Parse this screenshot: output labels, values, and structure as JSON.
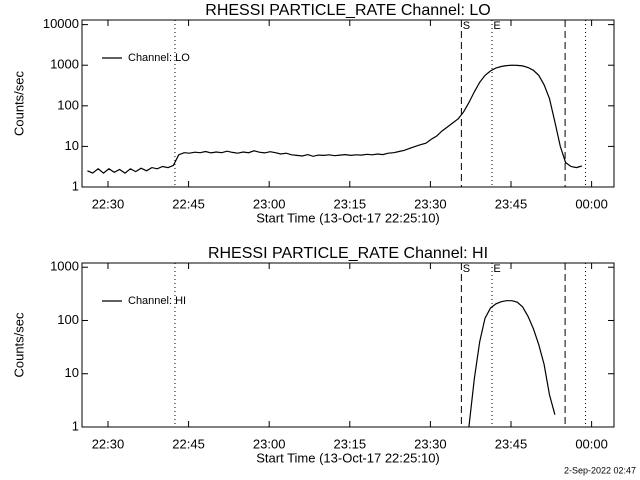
{
  "chart_data": [
    {
      "type": "line",
      "title": "RHESSI PARTICLE_RATE Channel: LO",
      "xlabel": "Start Time (13-Oct-17 22:25:10)",
      "ylabel": "Counts/sec",
      "x": [
        1,
        2,
        3,
        4,
        5,
        6,
        7,
        8,
        9,
        10,
        11,
        12,
        13,
        14,
        15,
        16,
        17,
        18,
        19,
        20,
        21,
        22,
        23,
        24,
        25,
        26,
        27,
        28,
        29,
        30,
        31,
        32,
        33,
        34,
        35,
        36,
        37,
        38,
        39,
        40,
        41,
        42,
        43,
        44,
        45,
        46,
        47,
        48,
        49,
        50,
        51,
        52,
        53,
        54,
        55,
        56,
        57,
        58,
        59,
        60,
        61,
        62,
        63,
        64,
        65,
        66,
        67,
        68,
        69,
        70,
        71,
        72,
        73,
        74,
        75,
        76,
        77,
        78,
        79,
        80,
        81,
        82,
        83,
        84,
        85,
        86,
        87,
        88,
        89,
        90,
        91,
        92,
        93
      ],
      "series": [
        {
          "name": "Channel: LO",
          "color": "#000000",
          "values": [
            2.5,
            2.2,
            2.8,
            2.2,
            2.8,
            2.3,
            2.7,
            2.2,
            2.8,
            2.4,
            2.9,
            2.5,
            3,
            2.8,
            3.2,
            3,
            3.4,
            6.2,
            7,
            6.8,
            7.2,
            7,
            7.5,
            6.9,
            7.3,
            7,
            7.6,
            7.1,
            6.8,
            7.3,
            7,
            7.8,
            7.2,
            6.9,
            7.4,
            7,
            6.5,
            6.8,
            6.2,
            6,
            5.8,
            6.3,
            5.7,
            6.1,
            6,
            6.2,
            5.9,
            6.1,
            6.3,
            6,
            6.2,
            6.1,
            6.4,
            6.2,
            6.5,
            6.3,
            6.8,
            7,
            7.5,
            8,
            9,
            10,
            11,
            12,
            15,
            18,
            24,
            30,
            38,
            48,
            70,
            120,
            220,
            380,
            560,
            720,
            850,
            930,
            980,
            1000,
            990,
            960,
            880,
            750,
            560,
            330,
            150,
            40,
            10,
            4,
            3.2,
            3,
            3.3
          ]
        }
      ],
      "xlim": [
        0,
        99
      ],
      "xticks": [
        {
          "value": 4.833,
          "label": "22:30"
        },
        {
          "value": 19.833,
          "label": "22:45"
        },
        {
          "value": 34.833,
          "label": "23:00"
        },
        {
          "value": 49.833,
          "label": "23:15"
        },
        {
          "value": 64.833,
          "label": "23:30"
        },
        {
          "value": 79.833,
          "label": "23:45"
        },
        {
          "value": 94.833,
          "label": "00:00"
        }
      ],
      "ylim": [
        1,
        13000
      ],
      "yticks": [
        1,
        10,
        100,
        1000,
        10000
      ],
      "log_y": true,
      "legend": "upper left",
      "markers": [
        {
          "x": 17.3,
          "style": "dotted"
        },
        {
          "x": 70.6,
          "style": "dashed",
          "label": "S"
        },
        {
          "x": 76.3,
          "style": "dotted",
          "label": "E"
        },
        {
          "x": 89.9,
          "style": "dashed"
        },
        {
          "x": 93.7,
          "style": "dotted"
        }
      ]
    },
    {
      "type": "line",
      "title": "RHESSI PARTICLE_RATE Channel: HI",
      "xlabel": "Start Time (13-Oct-17 22:25:10)",
      "ylabel": "Counts/sec",
      "x": [
        72,
        73,
        74,
        75,
        76,
        77,
        78,
        79,
        80,
        81,
        82,
        83,
        84,
        85,
        86,
        87,
        88
      ],
      "series": [
        {
          "name": "Channel: HI",
          "color": "#000000",
          "values": [
            1,
            8,
            40,
            110,
            170,
            205,
            225,
            235,
            235,
            220,
            180,
            120,
            70,
            35,
            15,
            4,
            1.7
          ]
        }
      ],
      "xlim": [
        0,
        99
      ],
      "xticks": [
        {
          "value": 4.833,
          "label": "22:30"
        },
        {
          "value": 19.833,
          "label": "22:45"
        },
        {
          "value": 34.833,
          "label": "23:00"
        },
        {
          "value": 49.833,
          "label": "23:15"
        },
        {
          "value": 64.833,
          "label": "23:30"
        },
        {
          "value": 79.833,
          "label": "23:45"
        },
        {
          "value": 94.833,
          "label": "00:00"
        }
      ],
      "ylim": [
        1,
        1200
      ],
      "yticks": [
        1,
        10,
        100,
        1000
      ],
      "log_y": true,
      "legend": "upper left",
      "markers": [
        {
          "x": 17.3,
          "style": "dotted"
        },
        {
          "x": 70.6,
          "style": "dashed",
          "label": "S"
        },
        {
          "x": 76.3,
          "style": "dotted",
          "label": "E"
        },
        {
          "x": 89.9,
          "style": "dashed"
        },
        {
          "x": 93.7,
          "style": "dotted"
        }
      ]
    }
  ],
  "footer": "2-Sep-2022 02:47"
}
